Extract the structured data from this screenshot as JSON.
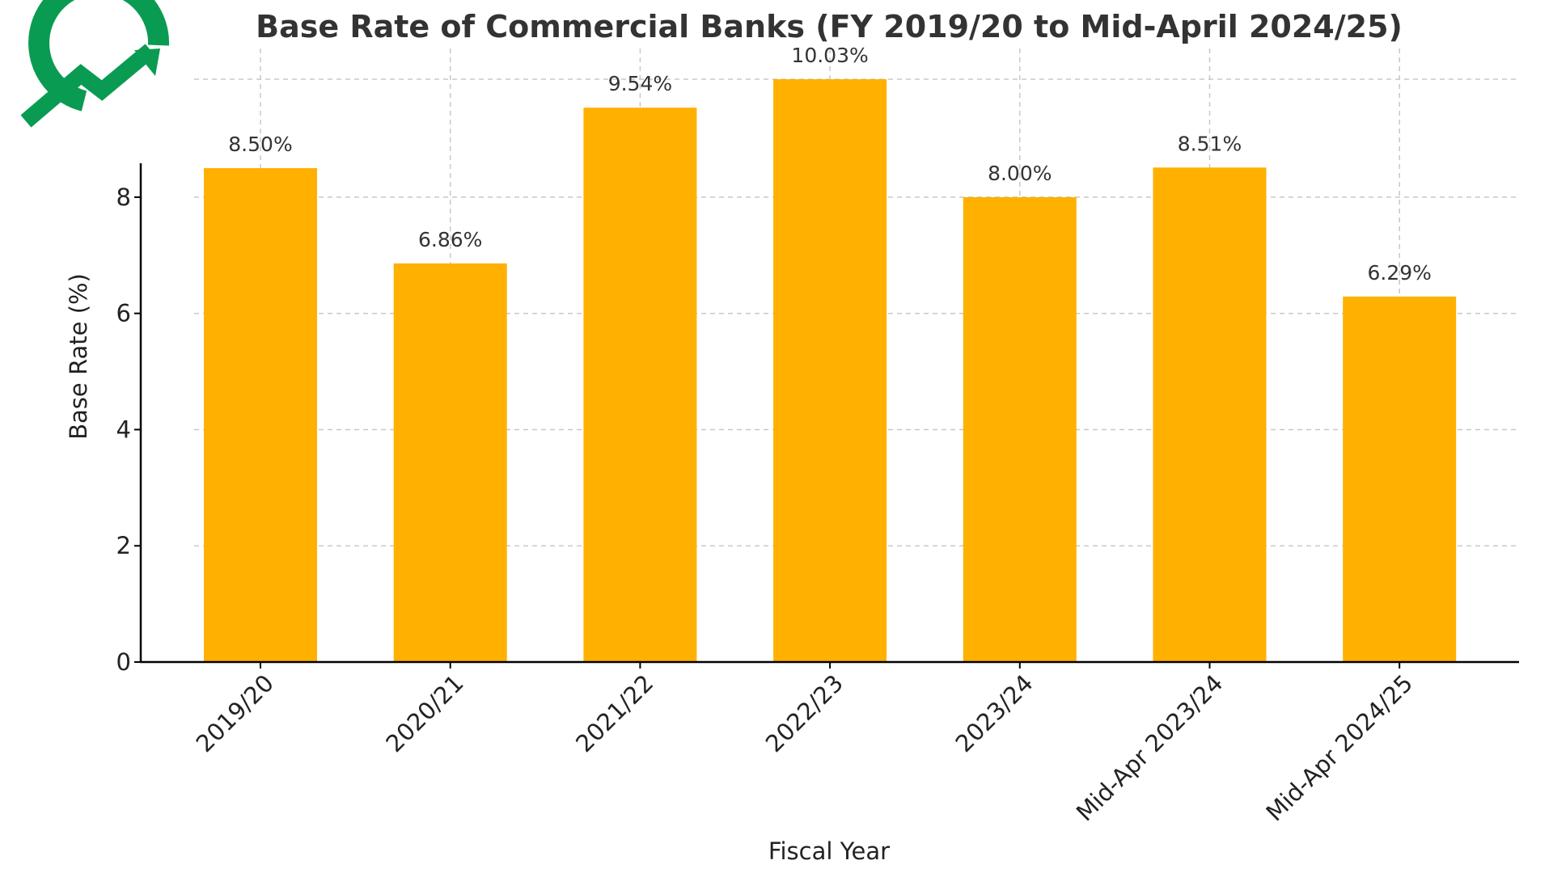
{
  "logo": {
    "icon": "trend-up-arrow-circle-icon",
    "color": "#0a9b52"
  },
  "chart_data": {
    "type": "bar",
    "title": "Base Rate of Commercial Banks (FY 2019/20 to Mid-April 2024/25)",
    "xlabel": "Fiscal Year",
    "ylabel": "Base Rate (%)",
    "categories": [
      "2019/20",
      "2020/21",
      "2021/22",
      "2022/23",
      "2023/24",
      "Mid-Apr 2023/24",
      "Mid-Apr 2024/25"
    ],
    "values": [
      8.5,
      6.86,
      9.54,
      10.03,
      8.0,
      8.51,
      6.29
    ],
    "data_labels": [
      "8.50%",
      "6.86%",
      "9.54%",
      "10.03%",
      "8.00%",
      "8.51%",
      "6.29%"
    ],
    "ylim": [
      0,
      10.03
    ],
    "yticks": [
      0,
      2,
      4,
      6,
      8
    ],
    "grid": true,
    "bar_color": "#ffb000"
  }
}
